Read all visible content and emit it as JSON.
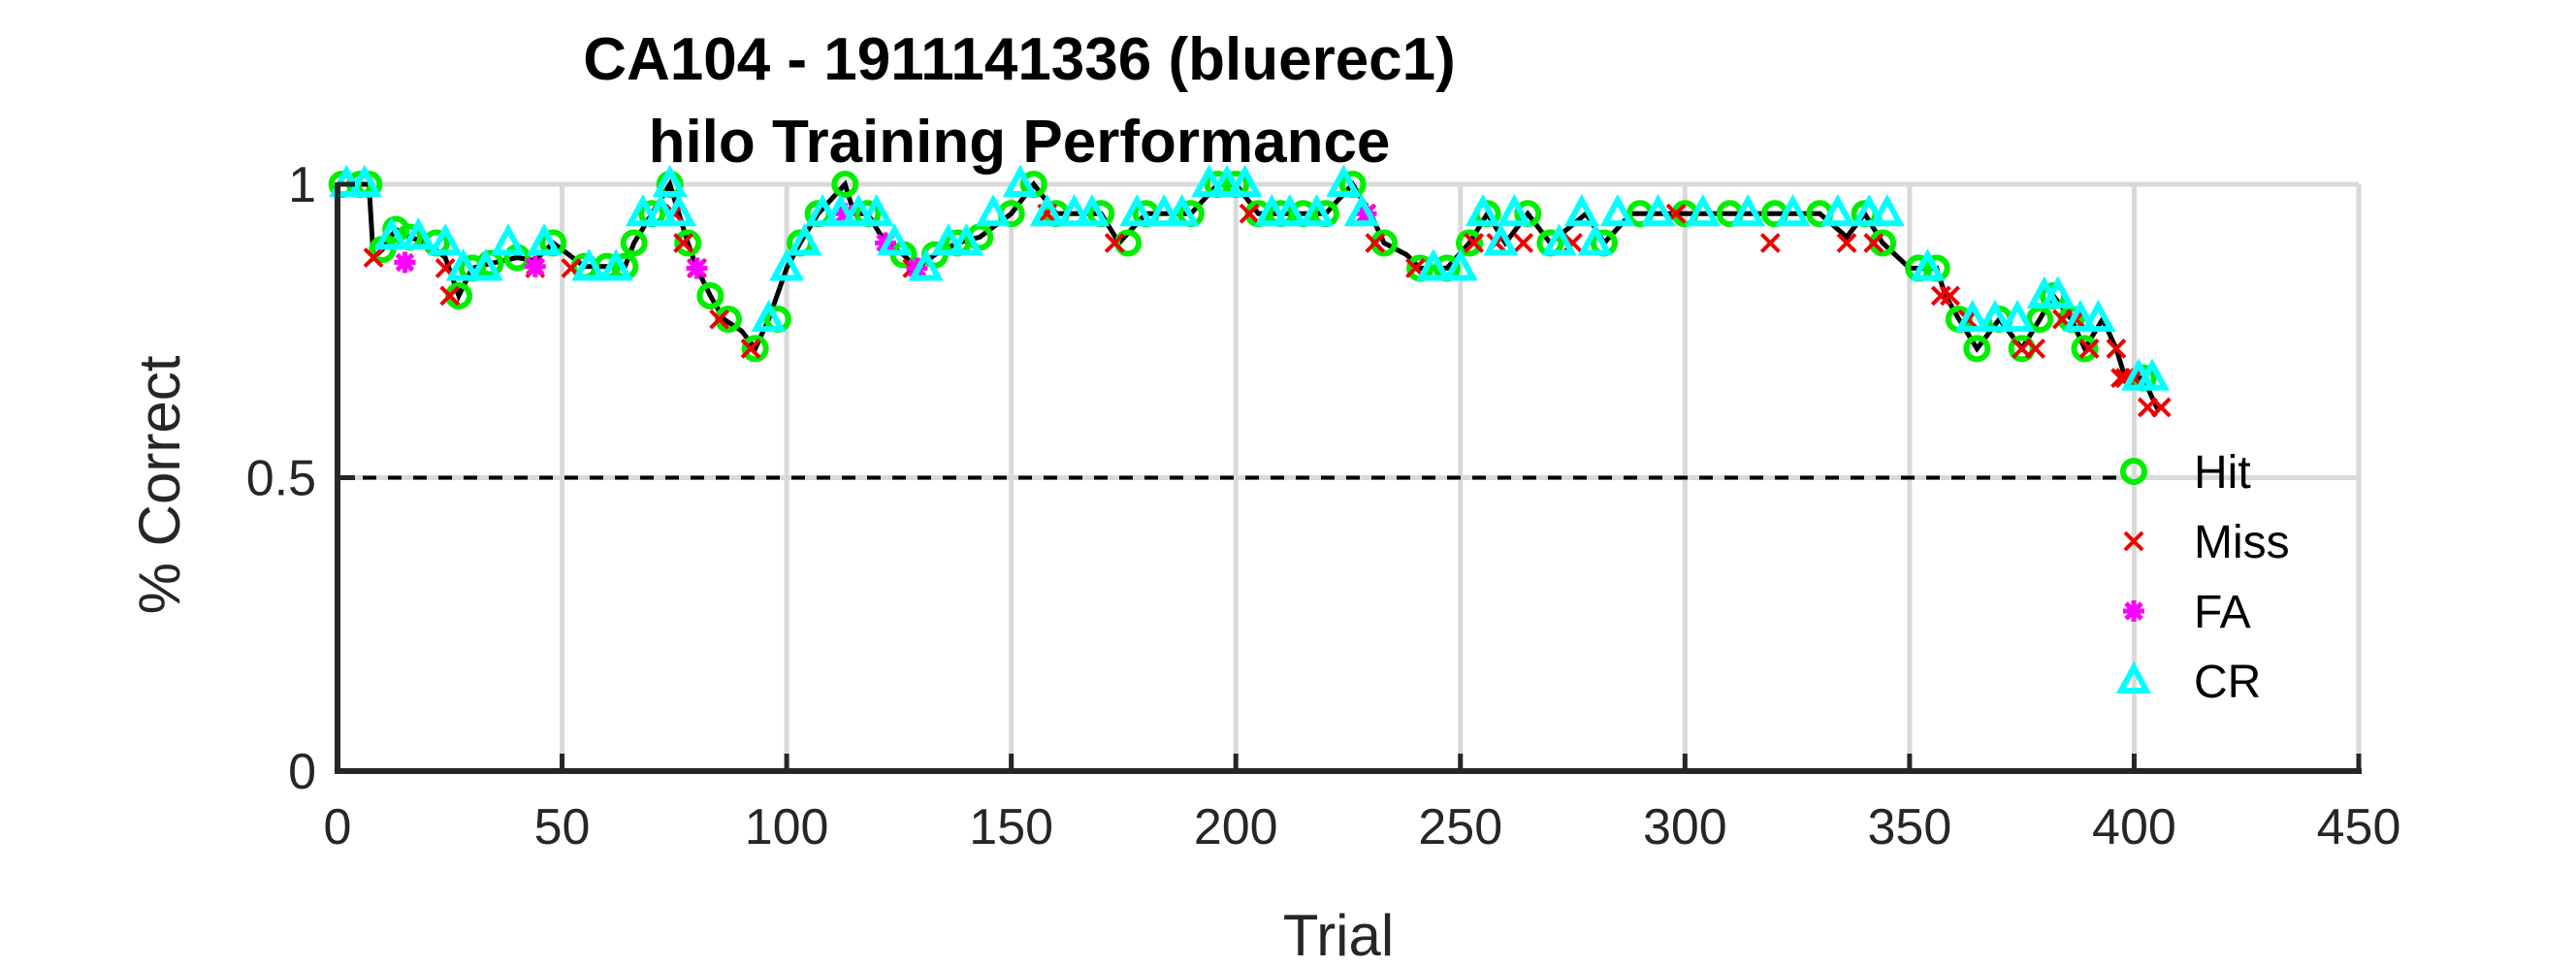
{
  "chart_data": {
    "type": "scatter",
    "title": "CA104 - 1911141336 (bluerec1)",
    "subtitle": "hilo Training Performance",
    "xlabel": "Trial",
    "ylabel": "% Correct",
    "xlim": [
      0,
      450
    ],
    "ylim": [
      0,
      1
    ],
    "xticks": [
      "0",
      "50",
      "100",
      "150",
      "200",
      "250",
      "300",
      "350",
      "400",
      "450"
    ],
    "yticks": [
      "0",
      "0.5",
      "1"
    ],
    "grid": true,
    "reference_line": {
      "y": 0.5,
      "style": "dashed"
    },
    "legend_position": "right",
    "colors": {
      "Hit": "#00ee00",
      "Miss": "#ee0000",
      "FA": "#ff00ff",
      "CR": "#00ffff",
      "line": "#000000",
      "grid": "#d9d9d9"
    },
    "trace": [
      [
        1,
        1
      ],
      [
        7,
        1
      ],
      [
        8,
        0.875
      ],
      [
        10,
        0.889
      ],
      [
        13,
        0.923
      ],
      [
        16,
        0.91
      ],
      [
        20,
        0.9
      ],
      [
        24,
        0.875
      ],
      [
        27,
        0.81
      ],
      [
        30,
        0.857
      ],
      [
        34,
        0.865
      ],
      [
        40,
        0.875
      ],
      [
        44,
        0.87
      ],
      [
        48,
        0.9
      ],
      [
        55,
        0.86
      ],
      [
        60,
        0.86
      ],
      [
        64,
        0.86
      ],
      [
        66,
        0.9
      ],
      [
        70,
        0.95
      ],
      [
        74,
        1
      ],
      [
        76,
        0.95
      ],
      [
        78,
        0.9
      ],
      [
        80,
        0.857
      ],
      [
        83,
        0.81
      ],
      [
        86,
        0.77
      ],
      [
        90,
        0.75
      ],
      [
        93,
        0.72
      ],
      [
        96,
        0.77
      ],
      [
        100,
        0.857
      ],
      [
        103,
        0.9
      ],
      [
        107,
        0.95
      ],
      [
        113,
        1
      ],
      [
        115,
        0.95
      ],
      [
        118,
        0.95
      ],
      [
        122,
        0.9
      ],
      [
        126,
        0.88
      ],
      [
        129,
        0.857
      ],
      [
        133,
        0.88
      ],
      [
        138,
        0.9
      ],
      [
        143,
        0.91
      ],
      [
        150,
        0.95
      ],
      [
        155,
        1
      ],
      [
        160,
        0.95
      ],
      [
        170,
        0.95
      ],
      [
        174,
        0.9
      ],
      [
        180,
        0.95
      ],
      [
        190,
        0.95
      ],
      [
        196,
        1
      ],
      [
        200,
        1
      ],
      [
        205,
        0.95
      ],
      [
        215,
        0.95
      ],
      [
        220,
        0.95
      ],
      [
        226,
        1
      ],
      [
        230,
        0.95
      ],
      [
        233,
        0.9
      ],
      [
        238,
        0.88
      ],
      [
        241,
        0.857
      ],
      [
        247,
        0.857
      ],
      [
        252,
        0.9
      ],
      [
        256,
        0.95
      ],
      [
        260,
        0.9
      ],
      [
        265,
        0.95
      ],
      [
        270,
        0.9
      ],
      [
        278,
        0.95
      ],
      [
        282,
        0.9
      ],
      [
        288,
        0.95
      ],
      [
        300,
        0.95
      ],
      [
        320,
        0.95
      ],
      [
        330,
        0.95
      ],
      [
        336,
        0.91
      ],
      [
        340,
        0.95
      ],
      [
        344,
        0.9
      ],
      [
        350,
        0.857
      ],
      [
        356,
        0.857
      ],
      [
        358,
        0.81
      ],
      [
        361,
        0.77
      ],
      [
        365,
        0.72
      ],
      [
        370,
        0.77
      ],
      [
        375,
        0.72
      ],
      [
        379,
        0.77
      ],
      [
        382,
        0.81
      ],
      [
        386,
        0.77
      ],
      [
        389,
        0.72
      ],
      [
        393,
        0.77
      ],
      [
        396,
        0.72
      ],
      [
        398,
        0.67
      ],
      [
        402,
        0.67
      ],
      [
        405,
        0.62
      ],
      [
        406,
        0.62
      ]
    ],
    "series": [
      {
        "name": "Hit",
        "marker": "circle",
        "x": [
          1,
          5,
          7,
          10,
          13,
          16,
          22,
          27,
          30,
          34,
          40,
          48,
          55,
          60,
          64,
          66,
          70,
          74,
          78,
          83,
          87,
          93,
          98,
          103,
          107,
          113,
          118,
          126,
          133,
          138,
          143,
          150,
          155,
          160,
          170,
          176,
          180,
          190,
          196,
          200,
          205,
          210,
          215,
          220,
          226,
          233,
          241,
          247,
          252,
          256,
          265,
          270,
          282,
          290,
          300,
          310,
          320,
          330,
          340,
          344,
          352,
          356,
          361,
          365,
          370,
          375,
          379,
          382,
          386,
          389,
          402
        ],
        "y": [
          1,
          1,
          1,
          0.889,
          0.923,
          0.91,
          0.9,
          0.81,
          0.857,
          0.865,
          0.875,
          0.9,
          0.86,
          0.86,
          0.86,
          0.9,
          0.95,
          1,
          0.9,
          0.81,
          0.77,
          0.72,
          0.77,
          0.9,
          0.95,
          1,
          0.95,
          0.88,
          0.88,
          0.9,
          0.91,
          0.95,
          1,
          0.95,
          0.95,
          0.9,
          0.95,
          0.95,
          1,
          1,
          0.95,
          0.95,
          0.95,
          0.95,
          1,
          0.9,
          0.857,
          0.857,
          0.9,
          0.95,
          0.95,
          0.9,
          0.9,
          0.95,
          0.95,
          0.95,
          0.95,
          0.95,
          0.95,
          0.9,
          0.857,
          0.857,
          0.77,
          0.72,
          0.77,
          0.72,
          0.77,
          0.81,
          0.77,
          0.72,
          0.67
        ]
      },
      {
        "name": "Miss",
        "marker": "x",
        "x": [
          8,
          24,
          25,
          44,
          52,
          75,
          77,
          80,
          85,
          92,
          128,
          158,
          173,
          203,
          229,
          231,
          240,
          253,
          258,
          264,
          275,
          298,
          319,
          336,
          342,
          357,
          359,
          363,
          375,
          378,
          384,
          387,
          390,
          396,
          397,
          398,
          400,
          403,
          406
        ],
        "y": [
          0.875,
          0.857,
          0.81,
          0.857,
          0.857,
          0.95,
          0.9,
          0.857,
          0.77,
          0.72,
          0.857,
          0.95,
          0.9,
          0.95,
          0.95,
          0.9,
          0.857,
          0.9,
          0.9,
          0.9,
          0.9,
          0.95,
          0.9,
          0.9,
          0.9,
          0.81,
          0.81,
          0.77,
          0.72,
          0.72,
          0.77,
          0.77,
          0.72,
          0.72,
          0.67,
          0.67,
          0.67,
          0.62,
          0.62
        ]
      },
      {
        "name": "FA",
        "marker": "asterisk",
        "x": [
          15,
          44,
          80,
          113,
          122,
          129,
          229
        ],
        "y": [
          0.867,
          0.86,
          0.857,
          0.95,
          0.9,
          0.857,
          0.95
        ]
      },
      {
        "name": "CR",
        "marker": "triangle",
        "x": [
          2,
          6,
          12,
          18,
          24,
          28,
          33,
          38,
          46,
          56,
          62,
          68,
          72,
          74,
          76,
          96,
          100,
          104,
          108,
          112,
          116,
          120,
          124,
          131,
          136,
          140,
          146,
          152,
          158,
          164,
          168,
          178,
          184,
          188,
          194,
          198,
          202,
          208,
          212,
          218,
          224,
          228,
          244,
          250,
          255,
          259,
          262,
          272,
          277,
          280,
          285,
          294,
          304,
          314,
          324,
          334,
          341,
          345,
          354,
          364,
          369,
          374,
          380,
          383,
          388,
          392,
          401,
          404
        ],
        "y": [
          1,
          1,
          0.91,
          0.91,
          0.9,
          0.857,
          0.857,
          0.9,
          0.9,
          0.857,
          0.857,
          0.95,
          0.95,
          1,
          0.95,
          0.77,
          0.857,
          0.9,
          0.95,
          0.95,
          0.95,
          0.95,
          0.9,
          0.857,
          0.9,
          0.9,
          0.95,
          1,
          0.95,
          0.95,
          0.95,
          0.95,
          0.95,
          0.95,
          1,
          1,
          1,
          0.95,
          0.95,
          0.95,
          1,
          0.95,
          0.857,
          0.857,
          0.95,
          0.9,
          0.95,
          0.9,
          0.95,
          0.9,
          0.95,
          0.95,
          0.95,
          0.95,
          0.95,
          0.95,
          0.95,
          0.95,
          0.857,
          0.77,
          0.77,
          0.77,
          0.81,
          0.81,
          0.77,
          0.77,
          0.67,
          0.67
        ]
      }
    ]
  }
}
